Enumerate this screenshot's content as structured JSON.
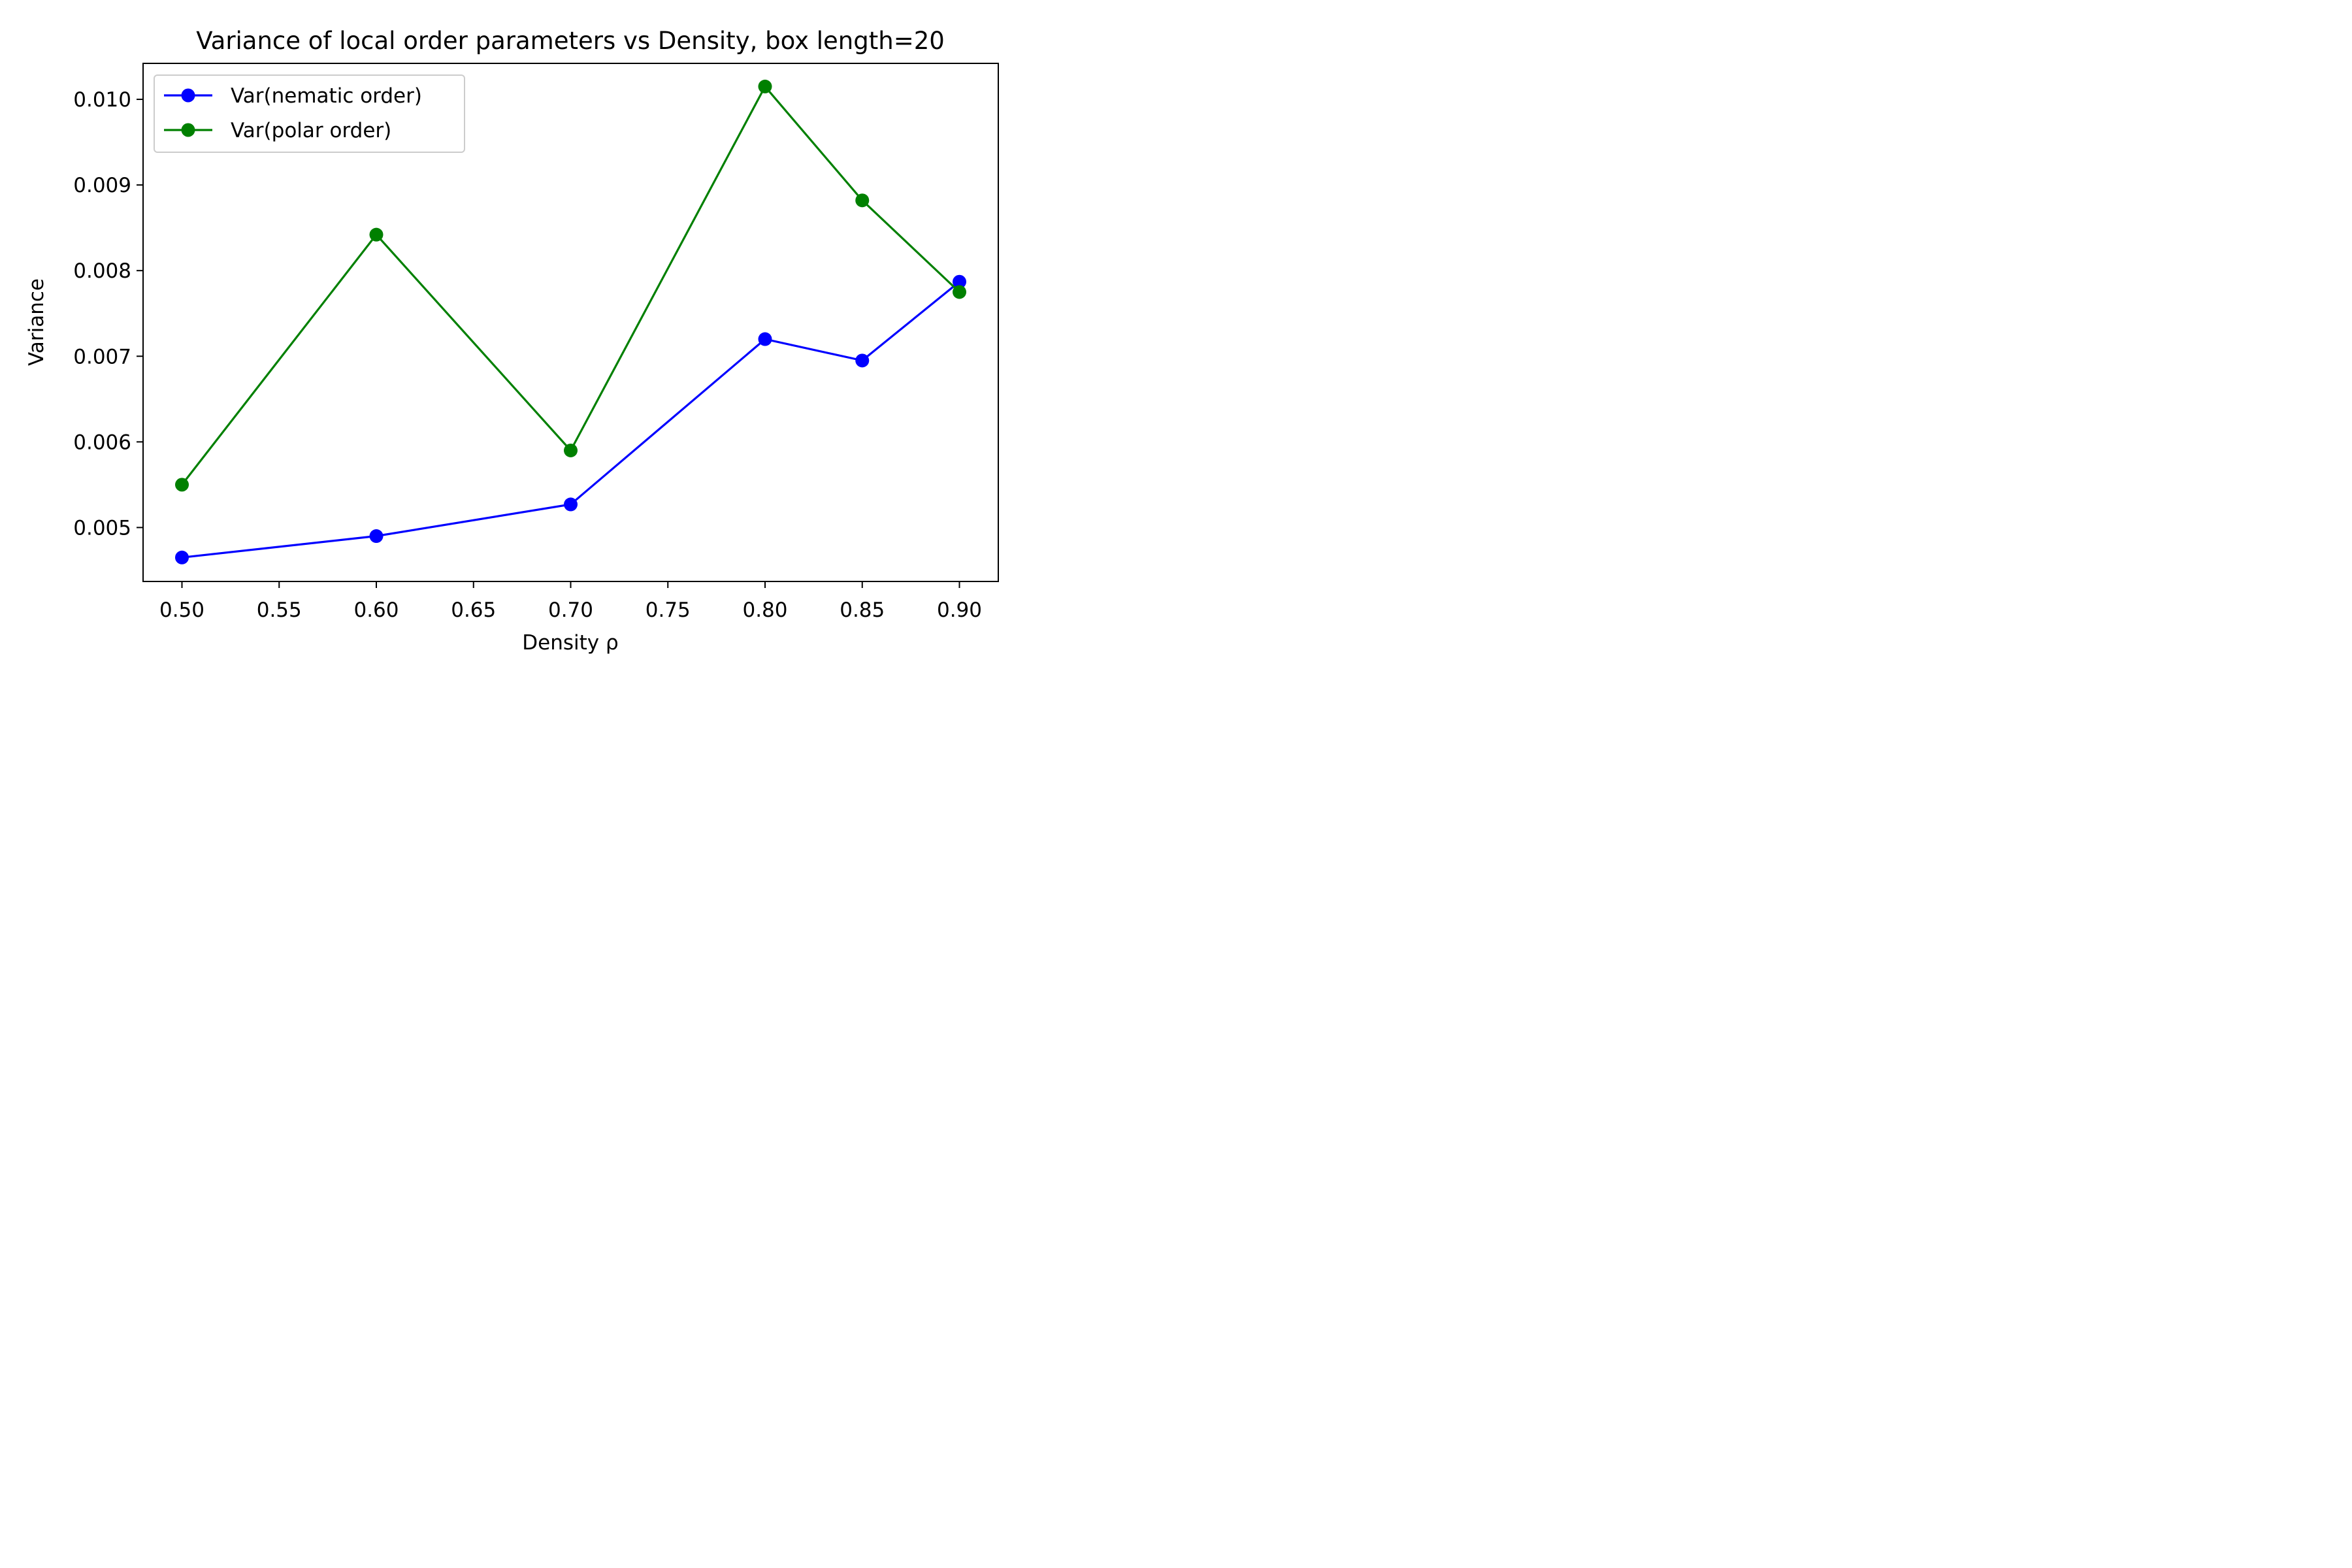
{
  "chart_data": {
    "type": "line",
    "title": "Variance of local order parameters vs Density, box length=20",
    "xlabel": "Density ρ",
    "ylabel": "Variance",
    "x": [
      0.5,
      0.6,
      0.7,
      0.8,
      0.85,
      0.9
    ],
    "xlim": [
      0.48,
      0.92
    ],
    "ylim": [
      0.00437,
      0.01042
    ],
    "xticks": [
      0.5,
      0.55,
      0.6,
      0.65,
      0.7,
      0.75,
      0.8,
      0.85,
      0.9
    ],
    "xtick_labels": [
      "0.50",
      "0.55",
      "0.60",
      "0.65",
      "0.70",
      "0.75",
      "0.80",
      "0.85",
      "0.90"
    ],
    "yticks": [
      0.005,
      0.006,
      0.007,
      0.008,
      0.009,
      0.01
    ],
    "ytick_labels": [
      "0.005",
      "0.006",
      "0.007",
      "0.008",
      "0.009",
      "0.010"
    ],
    "grid": false,
    "legend_position": "upper-left",
    "series": [
      {
        "name": "Var(nematic order)",
        "color": "#0000ff",
        "values": [
          0.00465,
          0.0049,
          0.00527,
          0.0072,
          0.00695,
          0.00787
        ]
      },
      {
        "name": "Var(polar order)",
        "color": "#008000",
        "values": [
          0.0055,
          0.00842,
          0.0059,
          0.01015,
          0.00882,
          0.00775
        ]
      }
    ]
  }
}
